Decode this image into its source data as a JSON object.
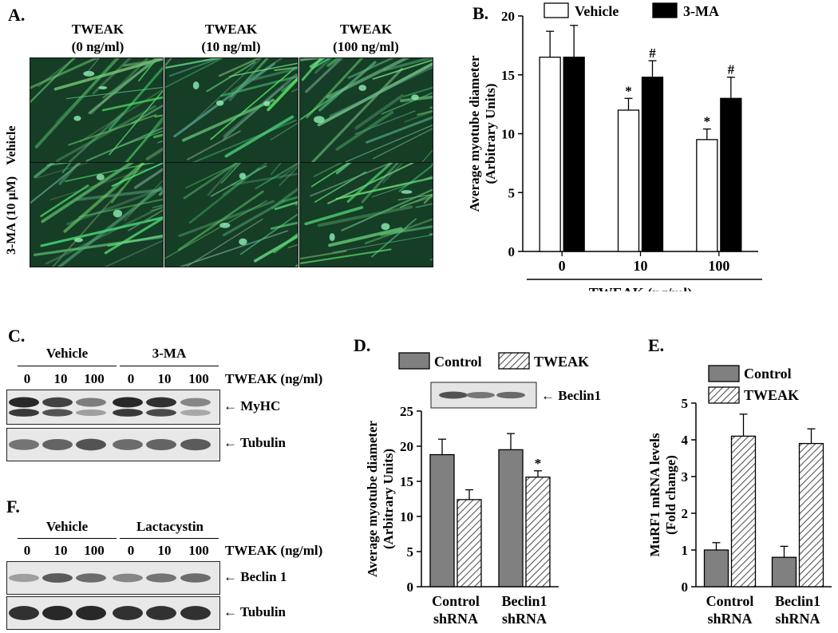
{
  "panel_a": {
    "label": "A.",
    "columns": [
      {
        "l1": "TWEAK",
        "l2": "(0 ng/ml)"
      },
      {
        "l1": "TWEAK",
        "l2": "(10 ng/ml)"
      },
      {
        "l1": "TWEAK",
        "l2": "(100 ng/ml)"
      }
    ],
    "rows": [
      "Vehicle",
      "3-MA (10 µM)"
    ]
  },
  "panel_c": {
    "label": "C.",
    "group1": "Vehicle",
    "group2": "3-MA",
    "lanes": [
      "0",
      "10",
      "100",
      "0",
      "10",
      "100"
    ],
    "dose_label": "TWEAK (ng/ml)",
    "band1": "MyHC",
    "band2": "Tubulin"
  },
  "panel_f": {
    "label": "F.",
    "group1": "Vehicle",
    "group2": "Lactacystin",
    "lanes": [
      "0",
      "10",
      "100",
      "0",
      "10",
      "100"
    ],
    "dose_label": "TWEAK (ng/ml)",
    "band1": "Beclin 1",
    "band2": "Tubulin"
  },
  "chart_data": [
    {
      "panel": "B.",
      "type": "bar",
      "ylabel": "Average myotube diameter (Arbitrary Units)",
      "xlabel": "TWEAK (ng/ml)",
      "categories": [
        "0",
        "10",
        "100"
      ],
      "ylim": [
        0,
        20
      ],
      "yticks": [
        0,
        5,
        10,
        15,
        20
      ],
      "legend": "top",
      "series": [
        {
          "name": "Vehicle",
          "fill": "#ffffff",
          "values": [
            16.5,
            12.0,
            9.5
          ],
          "errors": [
            2.2,
            1.0,
            0.9
          ],
          "marks": [
            "",
            "*",
            "*"
          ]
        },
        {
          "name": "3-MA",
          "fill": "#000000",
          "values": [
            16.5,
            14.8,
            13.0
          ],
          "errors": [
            2.7,
            1.4,
            1.8
          ],
          "marks": [
            "",
            "#",
            "#"
          ]
        }
      ]
    },
    {
      "panel": "D.",
      "type": "bar",
      "ylabel": "Average myotube diameter (Arbitrary Units)",
      "categories": [
        "Control shRNA",
        "Beclin1 shRNA"
      ],
      "ylim": [
        0,
        25
      ],
      "yticks": [
        0,
        5,
        10,
        15,
        20,
        25
      ],
      "legend": "top",
      "inset_label": "Beclin1",
      "series": [
        {
          "name": "Control",
          "fill": "#808080",
          "values": [
            18.8,
            19.5
          ],
          "errors": [
            2.2,
            2.3
          ],
          "marks": [
            "",
            ""
          ]
        },
        {
          "name": "TWEAK",
          "fill": "hatch",
          "values": [
            12.4,
            15.6
          ],
          "errors": [
            1.4,
            0.9
          ],
          "marks": [
            "",
            "*"
          ]
        }
      ]
    },
    {
      "panel": "E.",
      "type": "bar",
      "ylabel": "MuRF1 mRNA levels (Fold change)",
      "categories": [
        "Control shRNA",
        "Beclin1 shRNA"
      ],
      "ylim": [
        0,
        5
      ],
      "yticks": [
        0,
        1,
        2,
        3,
        4,
        5
      ],
      "legend": "top",
      "series": [
        {
          "name": "Control",
          "fill": "#808080",
          "values": [
            1.0,
            0.8
          ],
          "errors": [
            0.2,
            0.3
          ],
          "marks": [
            "",
            ""
          ]
        },
        {
          "name": "TWEAK",
          "fill": "hatch",
          "values": [
            4.1,
            3.9
          ],
          "errors": [
            0.6,
            0.4
          ],
          "marks": [
            "",
            ""
          ]
        }
      ]
    }
  ]
}
